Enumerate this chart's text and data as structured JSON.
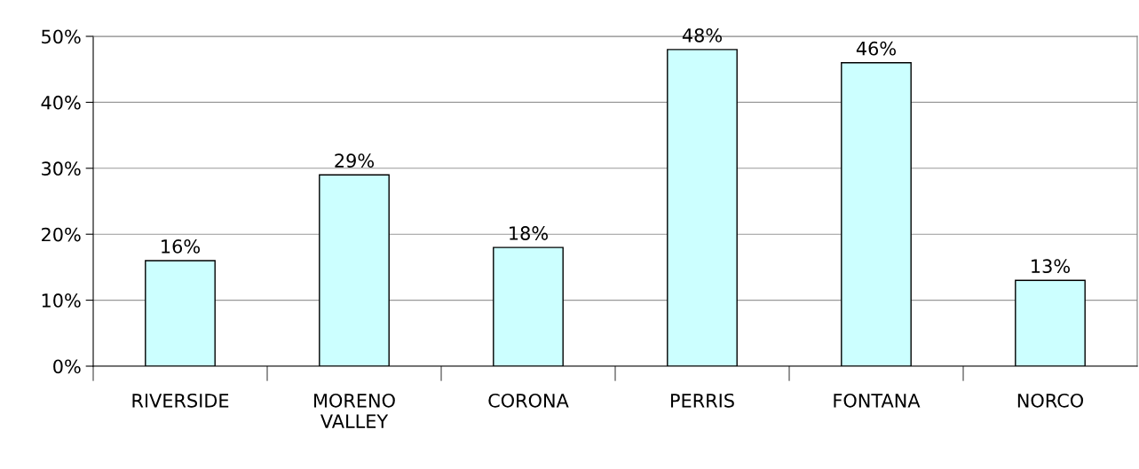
{
  "chart_data": {
    "type": "bar",
    "categories": [
      "RIVERSIDE",
      "MORENO\nVALLEY",
      "CORONA",
      "PERRIS",
      "FONTANA",
      "NORCO"
    ],
    "values": [
      16,
      29,
      18,
      48,
      46,
      13
    ],
    "value_labels": [
      "16%",
      "29%",
      "18%",
      "48%",
      "46%",
      "13%"
    ],
    "color": "#ccffff",
    "ylim": [
      0,
      50
    ],
    "yticks": [
      {
        "value": 0,
        "label": "0%"
      },
      {
        "value": 10,
        "label": "10%"
      },
      {
        "value": 20,
        "label": "20%"
      },
      {
        "value": 30,
        "label": "30%"
      },
      {
        "value": 40,
        "label": "40%"
      },
      {
        "value": 50,
        "label": "50%"
      }
    ],
    "grid": "y",
    "legend": false
  }
}
